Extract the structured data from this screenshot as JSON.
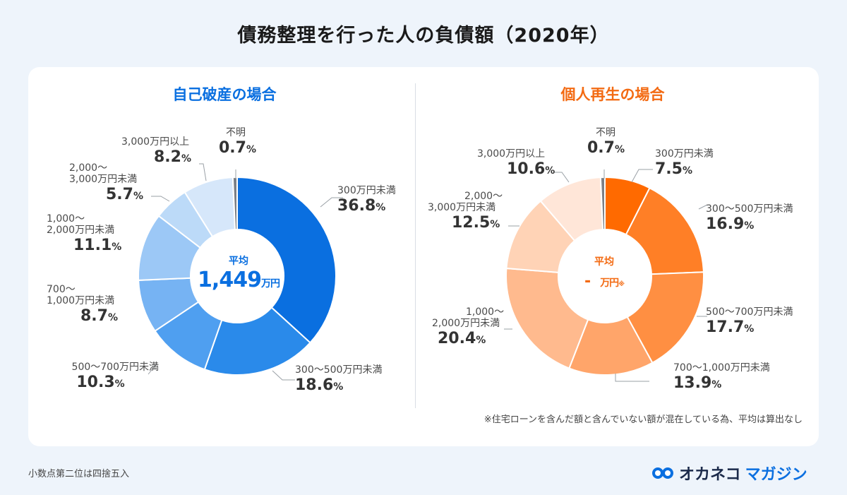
{
  "page": {
    "title": "債務整理を行った人の負債額（2020年）",
    "footnote": "小数点第二位は四捨五入",
    "brand_main": "オカネコ",
    "brand_sub": "マガジン"
  },
  "colors": {
    "blue_accent": "#0a6fe0",
    "orange_accent": "#f36a12",
    "unknown_gray": "#7a7f86"
  },
  "chart_data": [
    {
      "type": "pie",
      "variant": "donut",
      "title": "自己破産の場合",
      "center_label": "平均",
      "center_value": "1,449",
      "center_unit": "万円",
      "slices": [
        {
          "category": "300万円未満",
          "value": 36.8,
          "pct_label": "36.8",
          "color": "#0a6fe0"
        },
        {
          "category": "300〜500万円未満",
          "value": 18.6,
          "pct_label": "18.6",
          "color": "#2a8aea"
        },
        {
          "category": "500〜700万円未満",
          "value": 10.3,
          "pct_label": "10.3",
          "color": "#4f9ff0"
        },
        {
          "category": "700〜1,000万円未満",
          "value": 8.7,
          "pct_label": "8.7",
          "color": "#76b3f3"
        },
        {
          "category": "1,000〜2,000万円未満",
          "value": 11.1,
          "pct_label": "11.1",
          "color": "#9cc8f6"
        },
        {
          "category": "2,000〜3,000万円未満",
          "value": 5.7,
          "pct_label": "5.7",
          "color": "#bcdaf8"
        },
        {
          "category": "3,000万円以上",
          "value": 8.2,
          "pct_label": "8.2",
          "color": "#d6e7fa"
        },
        {
          "category": "不明",
          "value": 0.7,
          "pct_label": "0.7",
          "color": "#7a7f86"
        }
      ],
      "unit": "%"
    },
    {
      "type": "pie",
      "variant": "donut",
      "title": "個人再生の場合",
      "center_label": "平均",
      "center_value": "-",
      "center_unit": "万円",
      "center_mark": "※",
      "slices": [
        {
          "category": "300万円未満",
          "value": 7.5,
          "pct_label": "7.5",
          "color": "#ff6a00"
        },
        {
          "category": "300〜500万円未満",
          "value": 16.9,
          "pct_label": "16.9",
          "color": "#ff7f26"
        },
        {
          "category": "500〜700万円未満",
          "value": 17.7,
          "pct_label": "17.7",
          "color": "#ff8f42"
        },
        {
          "category": "700〜1,000万円未満",
          "value": 13.9,
          "pct_label": "13.9",
          "color": "#ffa56a"
        },
        {
          "category": "1,000〜2,000万円未満",
          "value": 20.4,
          "pct_label": "20.4",
          "color": "#ffba8e"
        },
        {
          "category": "2,000〜3,000万円未満",
          "value": 12.5,
          "pct_label": "12.5",
          "color": "#ffd3b6"
        },
        {
          "category": "3,000万円以上",
          "value": 10.6,
          "pct_label": "10.6",
          "color": "#ffe6d8"
        },
        {
          "category": "不明",
          "value": 0.7,
          "pct_label": "0.7",
          "color": "#7a7f86"
        }
      ],
      "unit": "%",
      "note": "※住宅ローンを含んだ額と含んでいない額が混在している為、平均は算出なし"
    }
  ]
}
